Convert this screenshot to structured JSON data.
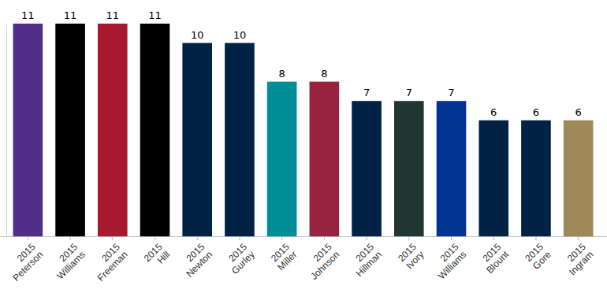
{
  "chart_data": {
    "type": "bar",
    "categories": [
      "2015 Peterson",
      "2015 Williams",
      "2015 Freeman",
      "2015 Hill",
      "2015 Newton",
      "2015 Gurley",
      "2015 Miller",
      "2015 Johnson",
      "2015 Hillman",
      "2015 Ivory",
      "2015 Williams",
      "2015 Blount",
      "2015 Gore",
      "2015 Ingram"
    ],
    "values": [
      11,
      11,
      11,
      11,
      10,
      10,
      8,
      8,
      7,
      7,
      7,
      6,
      6,
      6
    ],
    "colors": [
      "#532d8a",
      "#000000",
      "#a6192e",
      "#000000",
      "#002244",
      "#002244",
      "#008e97",
      "#97233f",
      "#002244",
      "#203731",
      "#003594",
      "#002244",
      "#002244",
      "#9f8958"
    ],
    "ylim": [
      0,
      11
    ],
    "data_labels": true,
    "tick_labels": "x"
  }
}
